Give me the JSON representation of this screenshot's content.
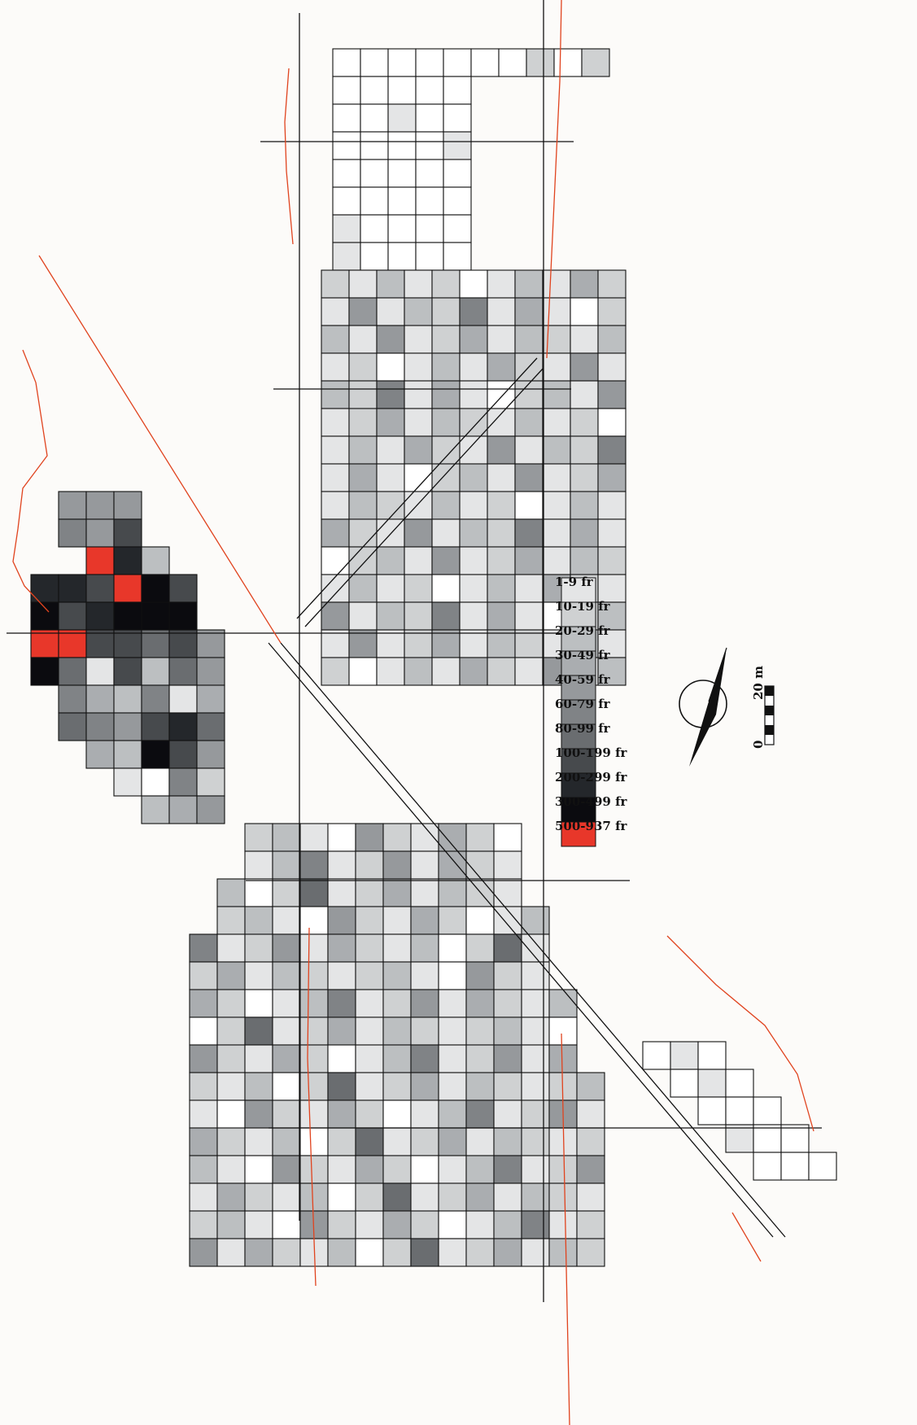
{
  "legend": {
    "title": "",
    "classes": [
      {
        "label": "500-937 fr",
        "color": "#e8372a"
      },
      {
        "label": "300-499 fr",
        "color": "#0b0b0f"
      },
      {
        "label": "200-299 fr",
        "color": "#24272b"
      },
      {
        "label": "100-199 fr",
        "color": "#474a4d"
      },
      {
        "label": "80-99 fr",
        "color": "#6a6d70"
      },
      {
        "label": "60-79 fr",
        "color": "#808386"
      },
      {
        "label": "40-59 fr",
        "color": "#96999c"
      },
      {
        "label": "30-49 fr",
        "color": "#aaadb0"
      },
      {
        "label": "20-29 fr",
        "color": "#bcbfc1"
      },
      {
        "label": "10-19 fr",
        "color": "#cfd1d2"
      },
      {
        "label": "1-9 fr",
        "color": "#e4e5e6"
      }
    ]
  },
  "scale_bar": {
    "start_label": "0",
    "end_label": "20 m"
  },
  "north_arrow": {
    "icon": "north-arrow-icon"
  },
  "colors": {
    "boundary": "#e0431e",
    "outline": "#111111",
    "empty_cell": "#ffffff"
  }
}
